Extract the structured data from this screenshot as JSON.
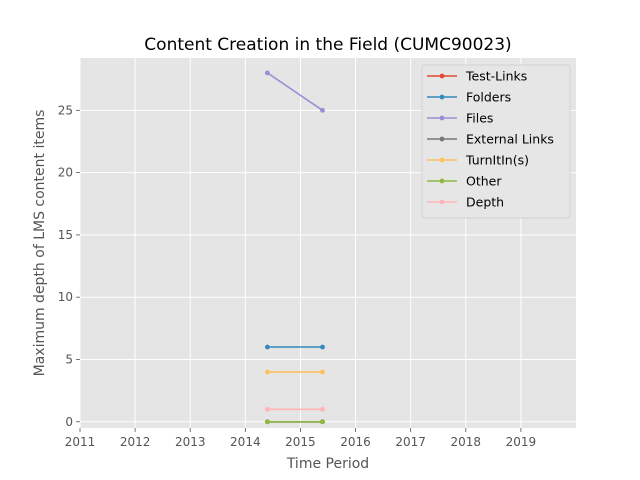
{
  "chart_data": {
    "type": "line",
    "title": "Content Creation in the Field (CUMC90023)",
    "xlabel": "Time Period",
    "ylabel": "Maximum depth of LMS content items",
    "xlim": [
      2011,
      2020
    ],
    "ylim": [
      -0.5,
      29.2
    ],
    "xticks": [
      "2011",
      "2012",
      "2013",
      "2014",
      "2015",
      "2016",
      "2017",
      "2018",
      "2019"
    ],
    "yticks": [
      "0",
      "5",
      "10",
      "15",
      "20",
      "25"
    ],
    "grid": true,
    "legend_position": "top-right",
    "x": [
      2014.4,
      2015.4
    ],
    "series": [
      {
        "name": "Test-Links",
        "color": "#E24A33",
        "values": [
          0,
          0
        ]
      },
      {
        "name": "Folders",
        "color": "#348ABD",
        "values": [
          6,
          6
        ]
      },
      {
        "name": "Files",
        "color": "#988ED5",
        "values": [
          28,
          25
        ]
      },
      {
        "name": "External Links",
        "color": "#777777",
        "values": [
          0,
          0
        ]
      },
      {
        "name": "TurnItIn(s)",
        "color": "#FBC15E",
        "values": [
          4,
          4
        ]
      },
      {
        "name": "Other",
        "color": "#8EBA42",
        "values": [
          0,
          0
        ]
      },
      {
        "name": "Depth",
        "color": "#FFB5B8",
        "values": [
          1,
          1
        ]
      }
    ]
  }
}
